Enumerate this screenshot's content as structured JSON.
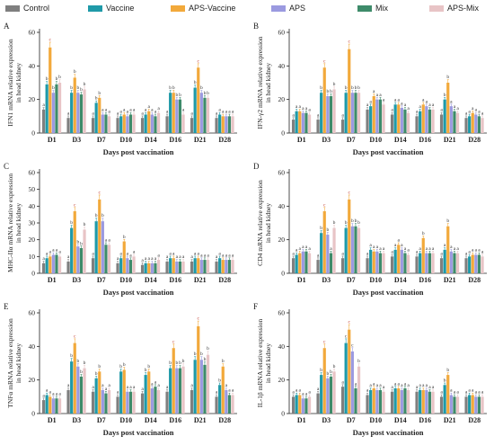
{
  "legend": [
    {
      "name": "Control",
      "color": "#7f7f7f"
    },
    {
      "name": "Vaccine",
      "color": "#1f9aa8"
    },
    {
      "name": "APS-Vaccine",
      "color": "#f2a93b"
    },
    {
      "name": "APS",
      "color": "#9b9ae0"
    },
    {
      "name": "Mix",
      "color": "#3e8b6a"
    },
    {
      "name": "APS-Mix",
      "color": "#e8c4c6"
    }
  ],
  "chart_data": [
    {
      "type": "bar",
      "panel_letter": "A",
      "ylabel": "IFN1 mRNA relative expression in head kidney",
      "xlabel": "Days post vaccination",
      "ylim": [
        0,
        60
      ],
      "yticks": [
        0,
        20,
        40,
        60
      ],
      "categories": [
        "D1",
        "D3",
        "D7",
        "D10",
        "D14",
        "D16",
        "D21",
        "D28"
      ],
      "series": [
        {
          "name": "Control",
          "values": [
            14,
            9,
            9,
            9,
            9,
            10,
            9,
            9
          ],
          "labels": [
            "a",
            "a",
            "a",
            "a",
            "a",
            "a",
            "a",
            "a"
          ]
        },
        {
          "name": "Vaccine",
          "values": [
            29,
            24,
            18,
            10,
            11,
            24,
            27,
            11
          ],
          "labels": [
            "b",
            "b",
            "b",
            "a",
            "a",
            "b",
            "b",
            "a"
          ]
        },
        {
          "name": "APS-Vaccine",
          "values": [
            51,
            33,
            21,
            11,
            13,
            24,
            39,
            10
          ],
          "labels": [
            "c",
            "b",
            "b",
            "a",
            "a",
            "b",
            "c",
            "a"
          ]
        },
        {
          "name": "APS",
          "values": [
            24,
            24,
            11,
            10,
            11,
            20,
            24,
            10
          ],
          "labels": [
            "b",
            "b",
            "a",
            "a",
            "a",
            "b",
            "b",
            "a"
          ]
        },
        {
          "name": "Mix",
          "values": [
            29,
            23,
            11,
            11,
            10,
            20,
            21,
            10
          ],
          "labels": [
            "b",
            "b",
            "a",
            "a",
            "a",
            "b",
            "b",
            "a"
          ]
        },
        {
          "name": "APS-Mix",
          "values": [
            30,
            26,
            10,
            11,
            12,
            11,
            21,
            10
          ],
          "labels": [
            "b",
            "b",
            "a",
            "a",
            "a",
            "a",
            "b",
            "a"
          ]
        }
      ]
    },
    {
      "type": "bar",
      "panel_letter": "B",
      "ylabel": "IFN-γ2 mRNA relative expression in head kidney",
      "xlabel": "Days post vaccination",
      "ylim": [
        0,
        60
      ],
      "yticks": [
        0,
        20,
        40,
        60
      ],
      "categories": [
        "D1",
        "D3",
        "D7",
        "D10",
        "D14",
        "D16",
        "D21",
        "D28"
      ],
      "series": [
        {
          "name": "Control",
          "values": [
            8,
            8,
            8,
            14,
            11,
            10,
            11,
            9
          ],
          "labels": [
            "a",
            "a",
            "a",
            "a",
            "a",
            "a",
            "a",
            "a"
          ]
        },
        {
          "name": "Vaccine",
          "values": [
            13,
            24,
            24,
            16,
            17,
            13,
            20,
            10
          ],
          "labels": [
            "a",
            "b",
            "b",
            "a",
            "a",
            "a",
            "b",
            "a"
          ]
        },
        {
          "name": "APS-Vaccine",
          "values": [
            13,
            39,
            50,
            22,
            17,
            17,
            30,
            12
          ],
          "labels": [
            "a",
            "c",
            "c",
            "a",
            "a",
            "a",
            "b",
            "a"
          ]
        },
        {
          "name": "APS",
          "values": [
            12,
            22,
            24,
            20,
            15,
            16,
            16,
            11
          ],
          "labels": [
            "a",
            "b",
            "b",
            "a",
            "a",
            "a",
            "a",
            "a"
          ]
        },
        {
          "name": "Mix",
          "values": [
            12,
            22,
            24,
            20,
            14,
            14,
            13,
            10
          ],
          "labels": [
            "a",
            "b",
            "b",
            "a",
            "a",
            "a",
            "a",
            "a"
          ]
        },
        {
          "name": "APS-Mix",
          "values": [
            11,
            26,
            24,
            17,
            12,
            14,
            12,
            9
          ],
          "labels": [
            "a",
            "b",
            "b",
            "a",
            "a",
            "a",
            "a",
            "a"
          ]
        }
      ]
    },
    {
      "type": "bar",
      "panel_letter": "C",
      "ylabel": "MHC-IIα mRNA relative expression in head kidney",
      "xlabel": "Days post vaccination",
      "ylim": [
        0,
        60
      ],
      "yticks": [
        0,
        10,
        20,
        30,
        40,
        50,
        60
      ],
      "categories": [
        "D1",
        "D3",
        "D7",
        "D10",
        "D14",
        "D16",
        "D21",
        "D28"
      ],
      "series": [
        {
          "name": "Control",
          "values": [
            6,
            7,
            9,
            6,
            5,
            7,
            7,
            7
          ],
          "labels": [
            "a",
            "a",
            "a",
            "a",
            "a",
            "a",
            "a",
            "a"
          ]
        },
        {
          "name": "Vaccine",
          "values": [
            9,
            27,
            31,
            9,
            6,
            9,
            9,
            9
          ],
          "labels": [
            "a",
            "b",
            "b",
            "a",
            "a",
            "a",
            "a",
            "a"
          ]
        },
        {
          "name": "APS-Vaccine",
          "values": [
            10,
            37,
            44,
            19,
            6,
            9,
            9,
            8
          ],
          "labels": [
            "a",
            "c",
            "c",
            "b",
            "a",
            "a",
            "a",
            "a"
          ]
        },
        {
          "name": "APS",
          "values": [
            11,
            16,
            31,
            9,
            6,
            7,
            8,
            8
          ],
          "labels": [
            "a",
            "b",
            "b",
            "a",
            "a",
            "a",
            "a",
            "a"
          ]
        },
        {
          "name": "Mix",
          "values": [
            11,
            15,
            17,
            8,
            6,
            7,
            8,
            8
          ],
          "labels": [
            "a",
            "b",
            "a",
            "a",
            "a",
            "a",
            "a",
            "a"
          ]
        },
        {
          "name": "APS-Mix",
          "values": [
            10,
            26,
            17,
            10,
            8,
            7,
            8,
            8
          ],
          "labels": [
            "a",
            "b",
            "a",
            "a",
            "a",
            "a",
            "a",
            "a"
          ]
        }
      ]
    },
    {
      "type": "bar",
      "panel_letter": "D",
      "ylabel": "CD4 mRNA relative expression in head kidney",
      "xlabel": "Days post vaccination",
      "ylim": [
        0,
        60
      ],
      "yticks": [
        0,
        20,
        40,
        60
      ],
      "categories": [
        "D1",
        "D3",
        "D7",
        "D10",
        "D14",
        "D16",
        "D21",
        "D28"
      ],
      "series": [
        {
          "name": "Control",
          "values": [
            9,
            8,
            9,
            9,
            10,
            10,
            9,
            9
          ],
          "labels": [
            "a",
            "a",
            "a",
            "a",
            "a",
            "a",
            "a",
            "a"
          ]
        },
        {
          "name": "Vaccine",
          "values": [
            11,
            24,
            27,
            14,
            14,
            12,
            14,
            10
          ],
          "labels": [
            "a",
            "b",
            "b",
            "a",
            "a",
            "a",
            "a",
            "a"
          ]
        },
        {
          "name": "APS-Vaccine",
          "values": [
            12,
            37,
            44,
            13,
            17,
            21,
            28,
            11
          ],
          "labels": [
            "a",
            "c",
            "c",
            "a",
            "a",
            "b",
            "b",
            "a"
          ]
        },
        {
          "name": "APS",
          "values": [
            13,
            23,
            28,
            13,
            14,
            12,
            13,
            11
          ],
          "labels": [
            "a",
            "b",
            "b",
            "a",
            "a",
            "a",
            "a",
            "a"
          ]
        },
        {
          "name": "Mix",
          "values": [
            13,
            12,
            28,
            12,
            12,
            12,
            12,
            11
          ],
          "labels": [
            "a",
            "a",
            "b",
            "a",
            "a",
            "a",
            "a",
            "a"
          ]
        },
        {
          "name": "APS-Mix",
          "values": [
            12,
            27,
            27,
            12,
            11,
            12,
            12,
            10
          ],
          "labels": [
            "a",
            "b",
            "b",
            "a",
            "a",
            "a",
            "a",
            "a"
          ]
        }
      ]
    },
    {
      "type": "bar",
      "panel_letter": "E",
      "ylabel": "TNFα mRNA relative expression in head kidney",
      "xlabel": "Days post vaccination",
      "ylim": [
        0,
        60
      ],
      "yticks": [
        0,
        20,
        40,
        60
      ],
      "categories": [
        "D1",
        "D3",
        "D7",
        "D10",
        "D14",
        "D16",
        "D21",
        "D28"
      ],
      "series": [
        {
          "name": "Control",
          "values": [
            8,
            14,
            13,
            10,
            12,
            13,
            14,
            10
          ],
          "labels": [
            "a",
            "a",
            "a",
            "a",
            "a",
            "a",
            "a",
            "a"
          ]
        },
        {
          "name": "Vaccine",
          "values": [
            11,
            31,
            21,
            25,
            23,
            27,
            32,
            17
          ],
          "labels": [
            "a",
            "b",
            "b",
            "b",
            "b",
            "b",
            "b",
            "b"
          ]
        },
        {
          "name": "APS-Vaccine",
          "values": [
            10,
            42,
            25,
            26,
            25,
            39,
            52,
            28
          ],
          "labels": [
            "a",
            "c",
            "b",
            "b",
            "b",
            "c",
            "c",
            "b"
          ]
        },
        {
          "name": "APS",
          "values": [
            9,
            28,
            14,
            13,
            15,
            27,
            32,
            14
          ],
          "labels": [
            "a",
            "b",
            "a",
            "a",
            "a",
            "b",
            "b",
            "a"
          ]
        },
        {
          "name": "Mix",
          "values": [
            9,
            22,
            12,
            13,
            16,
            27,
            29,
            11
          ],
          "labels": [
            "a",
            "b",
            "a",
            "a",
            "a",
            "b",
            "b",
            "a"
          ]
        },
        {
          "name": "APS-Mix",
          "values": [
            9,
            27,
            14,
            13,
            14,
            28,
            35,
            11
          ],
          "labels": [
            "a",
            "b",
            "a",
            "a",
            "a",
            "b",
            "b",
            "a"
          ]
        }
      ]
    },
    {
      "type": "bar",
      "panel_letter": "F",
      "ylabel": "IL-1β mRNA relative expression in head kidney",
      "xlabel": "Days post vaccination",
      "ylim": [
        0,
        60
      ],
      "yticks": [
        0,
        20,
        40,
        60
      ],
      "categories": [
        "D1",
        "D3",
        "D7",
        "D10",
        "D14",
        "D16",
        "D21",
        "D28"
      ],
      "series": [
        {
          "name": "Control",
          "values": [
            10,
            12,
            16,
            11,
            13,
            13,
            10,
            10
          ],
          "labels": [
            "a",
            "a",
            "a",
            "a",
            "a",
            "a",
            "a",
            "a"
          ]
        },
        {
          "name": "Vaccine",
          "values": [
            11,
            23,
            42,
            14,
            15,
            14,
            17,
            11
          ],
          "labels": [
            "a",
            "b",
            "c",
            "a",
            "a",
            "a",
            "b",
            "a"
          ]
        },
        {
          "name": "APS-Vaccine",
          "values": [
            11,
            39,
            50,
            15,
            15,
            14,
            23,
            11
          ],
          "labels": [
            "a",
            "c",
            "c",
            "a",
            "a",
            "a",
            "b",
            "a"
          ]
        },
        {
          "name": "APS",
          "values": [
            9,
            21,
            37,
            14,
            14,
            14,
            11,
            10
          ],
          "labels": [
            "a",
            "b",
            "c",
            "a",
            "a",
            "a",
            "a",
            "a"
          ]
        },
        {
          "name": "Mix",
          "values": [
            9,
            22,
            15,
            14,
            15,
            13,
            10,
            10
          ],
          "labels": [
            "a",
            "b",
            "a",
            "a",
            "a",
            "a",
            "a",
            "a"
          ]
        },
        {
          "name": "APS-Mix",
          "values": [
            10,
            25,
            28,
            13,
            14,
            13,
            10,
            10
          ],
          "labels": [
            "a",
            "b",
            "b",
            "a",
            "a",
            "a",
            "a",
            "a"
          ]
        }
      ]
    }
  ]
}
